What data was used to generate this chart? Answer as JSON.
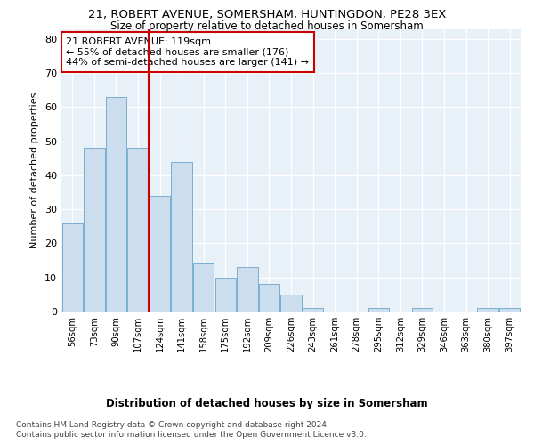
{
  "title1": "21, ROBERT AVENUE, SOMERSHAM, HUNTINGDON, PE28 3EX",
  "title2": "Size of property relative to detached houses in Somersham",
  "xlabel": "Distribution of detached houses by size in Somersham",
  "ylabel": "Number of detached properties",
  "bar_color": "#ccdded",
  "bar_edge_color": "#7aaed0",
  "background_color": "#e8f0f8",
  "grid_color": "#ffffff",
  "vline_color": "#cc0000",
  "annotation_text": "21 ROBERT AVENUE: 119sqm\n← 55% of detached houses are smaller (176)\n44% of semi-detached houses are larger (141) →",
  "annotation_box_color": "#ffffff",
  "annotation_box_edge": "#cc0000",
  "footer1": "Contains HM Land Registry data © Crown copyright and database right 2024.",
  "footer2": "Contains public sector information licensed under the Open Government Licence v3.0.",
  "categories": [
    "56sqm",
    "73sqm",
    "90sqm",
    "107sqm",
    "124sqm",
    "141sqm",
    "158sqm",
    "175sqm",
    "192sqm",
    "209sqm",
    "226sqm",
    "243sqm",
    "261sqm",
    "278sqm",
    "295sqm",
    "312sqm",
    "329sqm",
    "346sqm",
    "363sqm",
    "380sqm",
    "397sqm"
  ],
  "values": [
    26,
    48,
    63,
    48,
    34,
    44,
    14,
    10,
    13,
    8,
    5,
    1,
    0,
    0,
    1,
    0,
    1,
    0,
    0,
    1,
    1
  ],
  "ylim": [
    0,
    83
  ],
  "yticks": [
    0,
    10,
    20,
    30,
    40,
    50,
    60,
    70,
    80
  ],
  "vline_index": 4,
  "figsize": [
    6.0,
    5.0
  ],
  "dpi": 100
}
